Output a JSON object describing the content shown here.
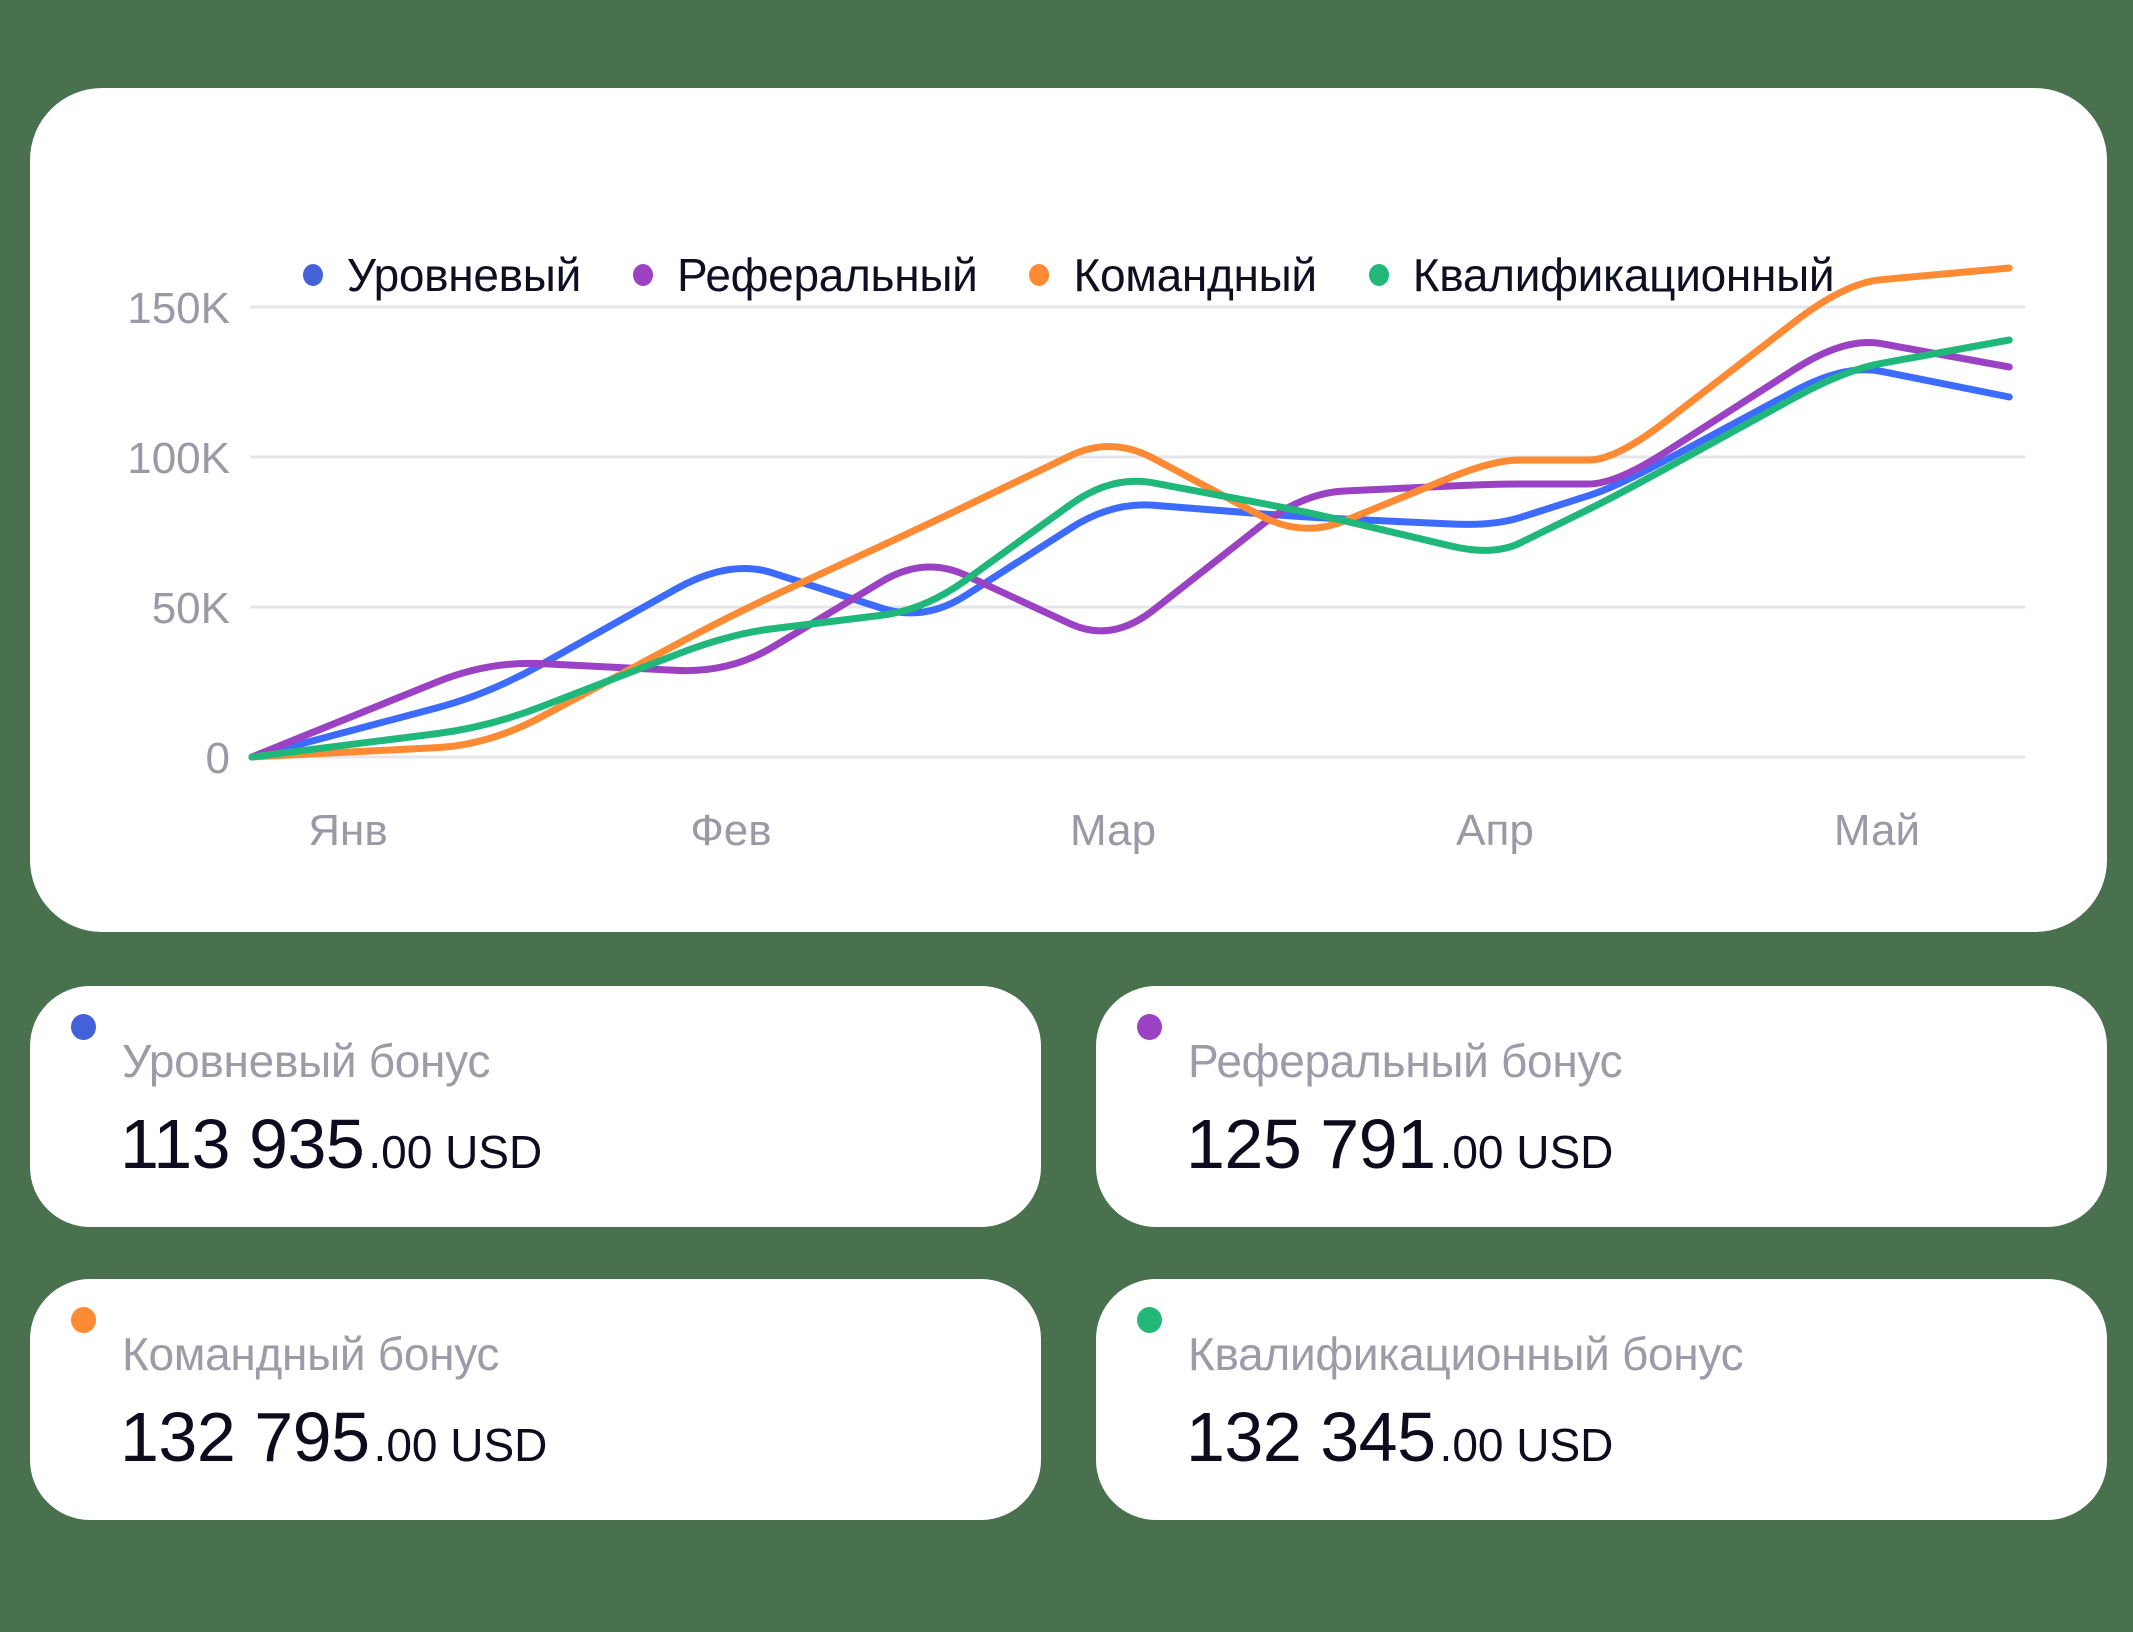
{
  "legend": [
    {
      "label": "Уровневый",
      "color": "#4361d8"
    },
    {
      "label": "Реферальный",
      "color": "#9b42c4"
    },
    {
      "label": "Командный",
      "color": "#ff8a34"
    },
    {
      "label": "Квалификационный",
      "color": "#23b878"
    }
  ],
  "cards": [
    {
      "label": "Уровневый бонус",
      "amount": "113 935",
      "fraction": ".00 USD",
      "color": "#4361d8"
    },
    {
      "label": "Реферальный бонус",
      "amount": "125 791",
      "fraction": ".00 USD",
      "color": "#9b42c4"
    },
    {
      "label": "Командный бонус",
      "amount": "132 795",
      "fraction": ".00 USD",
      "color": "#ff8a34"
    },
    {
      "label": "Квалификационный бонус",
      "amount": "132 345",
      "fraction": ".00 USD",
      "color": "#23b878"
    }
  ],
  "chart_data": {
    "type": "line",
    "title": "",
    "xlabel": "",
    "ylabel": "",
    "categories": [
      "Янв",
      "Фев",
      "Мар",
      "Апр",
      "Май"
    ],
    "x_positions": [
      0,
      0.62,
      1.25,
      1.76,
      2.25,
      2.75,
      3.25,
      3.57,
      4.17,
      4.6
    ],
    "y_ticks": [
      "0",
      "50K",
      "100K",
      "150K"
    ],
    "ylim": [
      0,
      165000
    ],
    "grid": true,
    "legend_position": "top",
    "series": [
      {
        "name": "Уровневый",
        "color": "#3d6bff",
        "values": [
          0,
          21000,
          66000,
          45000,
          85000,
          80000,
          77000,
          90000,
          131000,
          120000
        ]
      },
      {
        "name": "Реферальный",
        "color": "#9b42c4",
        "values": [
          0,
          32000,
          28000,
          67000,
          38000,
          88000,
          91000,
          91000,
          140000,
          130000
        ]
      },
      {
        "name": "Командный",
        "color": "#ff8a34",
        "values": [
          0,
          4000,
          47000,
          77000,
          107000,
          73000,
          99000,
          99000,
          158000,
          163000
        ]
      },
      {
        "name": "Квалификационный",
        "color": "#1fb87a",
        "values": [
          0,
          10000,
          41000,
          49000,
          94000,
          82000,
          67000,
          87000,
          129000,
          139000
        ]
      }
    ]
  }
}
